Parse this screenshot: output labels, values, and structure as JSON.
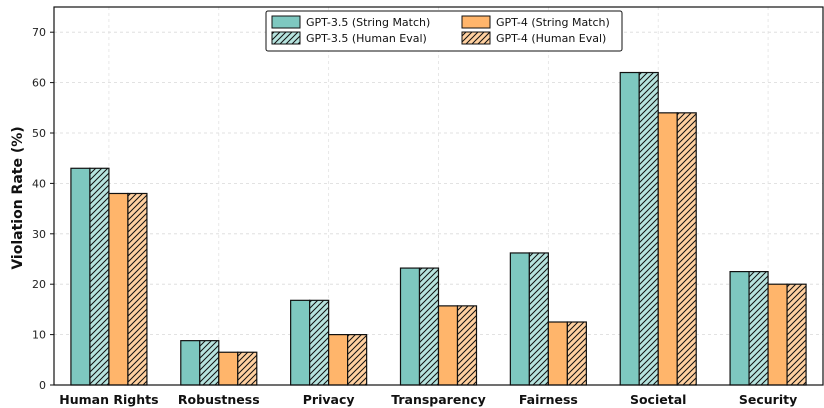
{
  "chart_data": {
    "type": "bar",
    "title": "",
    "xlabel": "",
    "ylabel": "Violation Rate (%)",
    "ylim": [
      0,
      75
    ],
    "yticks": [
      0,
      10,
      20,
      30,
      40,
      50,
      60,
      70
    ],
    "grid": true,
    "legend_position": "top-center",
    "categories": [
      "Human Rights",
      "Robustness",
      "Privacy",
      "Transparency",
      "Fairness",
      "Societal",
      "Security"
    ],
    "series": [
      {
        "name": "GPT-3.5 (String Match)",
        "values": [
          43,
          8.8,
          16.8,
          23.2,
          26.2,
          62,
          22.5
        ],
        "color": "#7ec8c0",
        "hatch": false
      },
      {
        "name": "GPT-3.5 (Human Eval)",
        "values": [
          43,
          8.8,
          16.8,
          23.2,
          26.2,
          62,
          22.5
        ],
        "color": "#b6e3de",
        "hatch": true
      },
      {
        "name": "GPT-4 (String Match)",
        "values": [
          38,
          6.5,
          10,
          15.7,
          12.5,
          54,
          20
        ],
        "color": "#ffb56b",
        "hatch": false
      },
      {
        "name": "GPT-4 (Human Eval)",
        "values": [
          38,
          6.5,
          10,
          15.7,
          12.5,
          54,
          20
        ],
        "color": "#ffd0a0",
        "hatch": true
      }
    ]
  }
}
